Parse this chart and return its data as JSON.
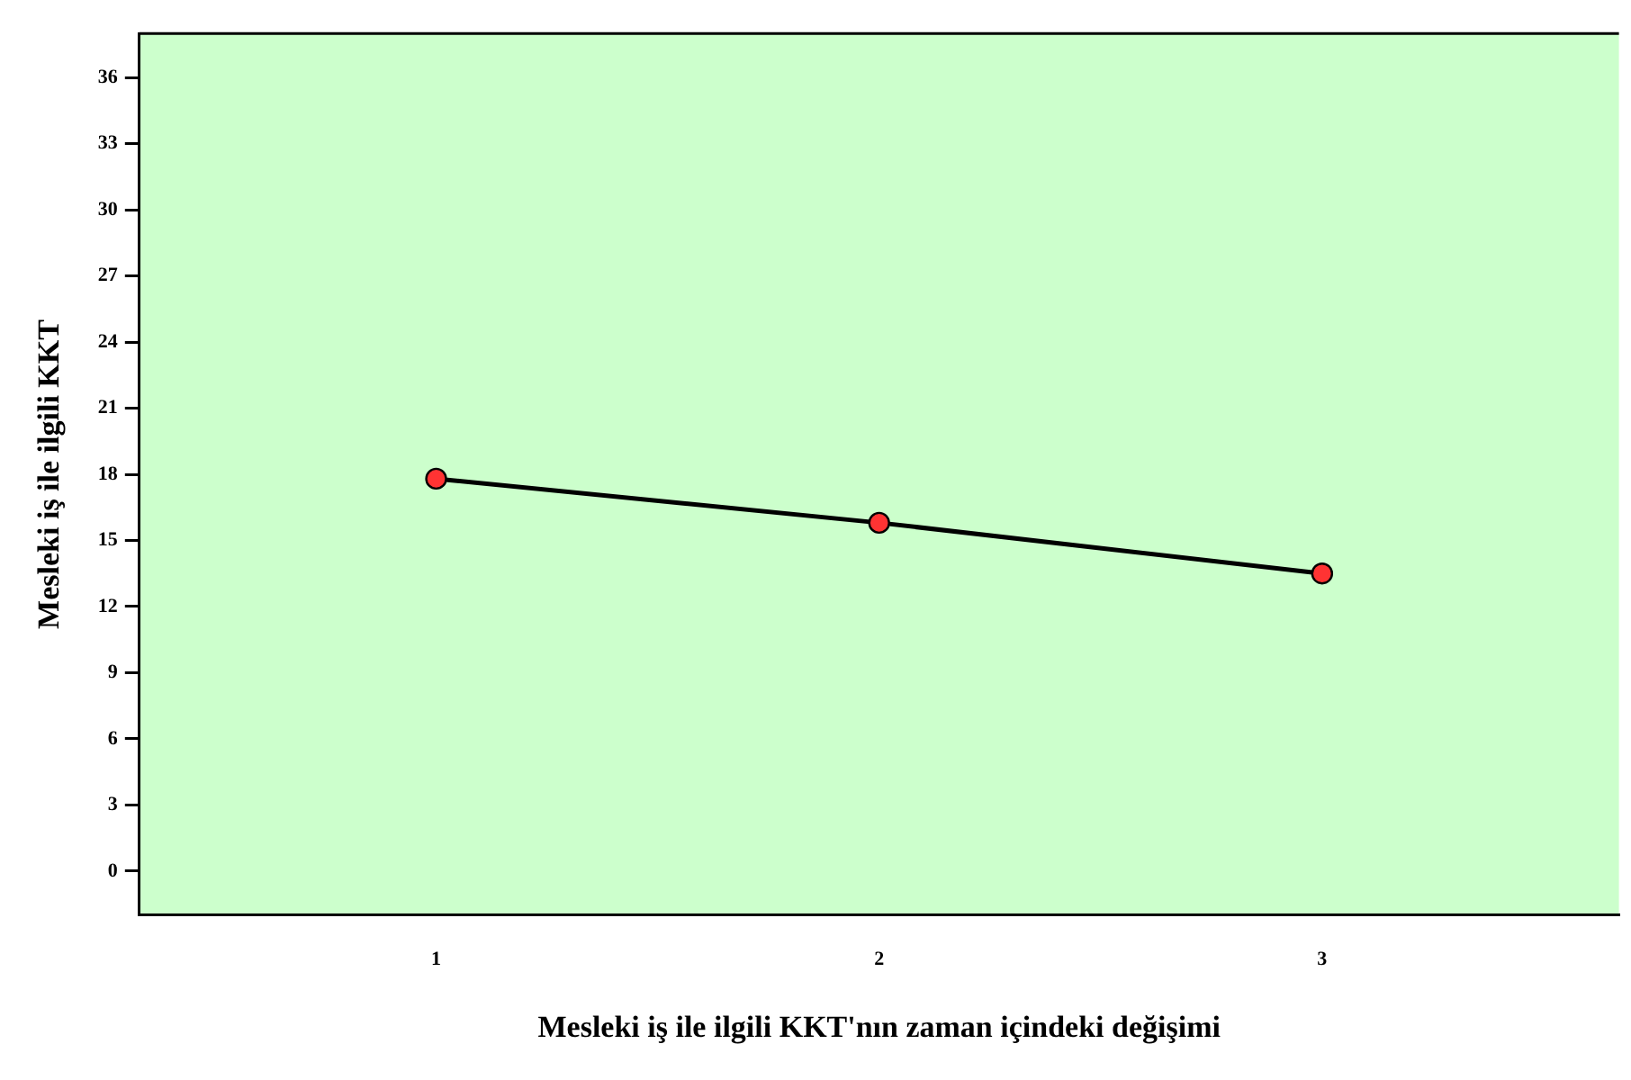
{
  "chart_data": {
    "type": "line",
    "xlabel": "Mesleki iş ile ilgili KKT'nın zaman içindeki değişimi",
    "ylabel": "Mesleki iş ile ilgili KKT",
    "x": [
      1,
      2,
      3
    ],
    "series": [
      {
        "color": "#000000",
        "values": [
          17.8,
          15.8,
          13.5
        ]
      }
    ],
    "xlim": [
      0.33,
      3.67
    ],
    "xticks": [
      1,
      2,
      3
    ],
    "ylim": [
      -2,
      38
    ],
    "yticks": [
      0,
      3,
      6,
      9,
      12,
      15,
      18,
      21,
      24,
      27,
      30,
      33,
      36
    ],
    "grid": false,
    "legend": false,
    "marker": "circle",
    "line_style": "solid"
  }
}
